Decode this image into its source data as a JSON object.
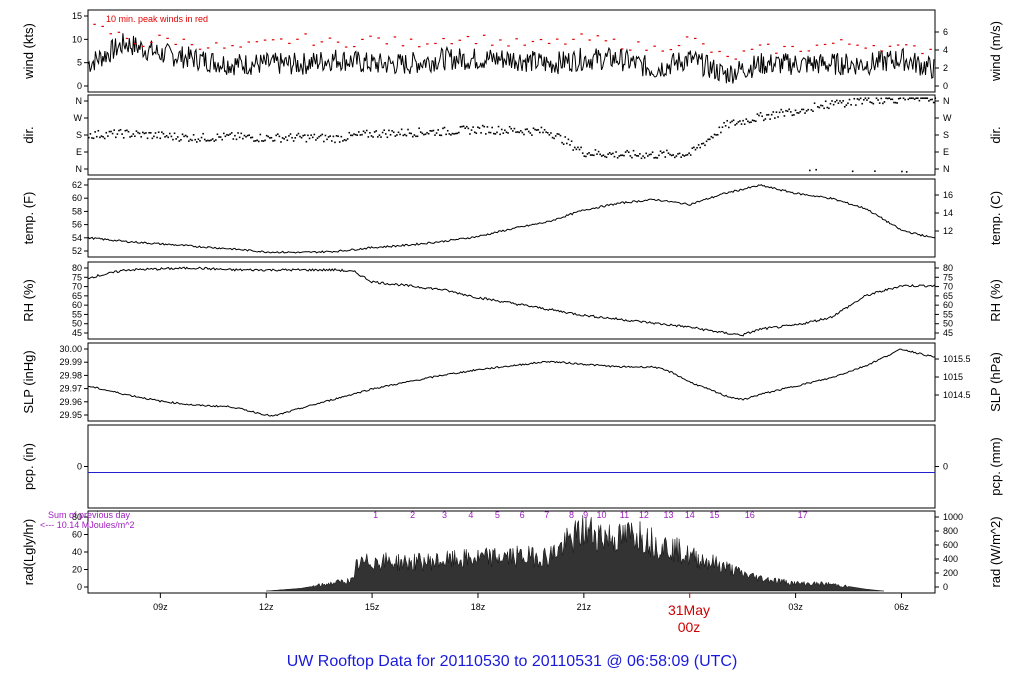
{
  "title": "UW Rooftop Data for 20110530  to  20110531 @ 06:58:09  (UTC)",
  "colors": {
    "title": "#1a1adb",
    "peak": "#e00000",
    "day": "#cc0000",
    "purple": "#a020c0",
    "pcp": "#2222cc",
    "line": "#000000"
  },
  "time_axis": {
    "ticks": [
      "09z",
      "12z",
      "15z",
      "18z",
      "21z",
      "03z",
      "06z"
    ],
    "date_label": "31May",
    "date_sub": "00z"
  },
  "chart_data": [
    {
      "type": "line",
      "ylabel_left": "wind (kts)",
      "ylabel_right": "wind (m/s)",
      "left_ticks": [
        "15",
        "10",
        "5",
        "0"
      ],
      "right_ticks": [
        "6",
        "4",
        "2",
        "0"
      ],
      "annotation": "10 min. peak winds in red",
      "ylim": [
        0,
        15
      ],
      "series": [
        {
          "x": [
            6.95,
            7.5,
            8,
            9,
            10,
            11,
            12,
            13,
            14,
            15,
            16,
            17,
            18,
            19,
            20,
            21,
            22,
            23,
            24,
            25,
            26,
            27,
            28,
            29,
            30,
            30.95
          ],
          "values": [
            5,
            7,
            9,
            7,
            6,
            5,
            5,
            5,
            6,
            5,
            5,
            6,
            6,
            6,
            5,
            6,
            6,
            4,
            6,
            3,
            5,
            5,
            5,
            5,
            6,
            4
          ]
        }
      ],
      "peaks": {
        "x": [
          7.2,
          8.5,
          9,
          10,
          11,
          12,
          13,
          14,
          15,
          16,
          17,
          18,
          19,
          20,
          21,
          22,
          23,
          24,
          25,
          26,
          27,
          28,
          29,
          30
        ],
        "values": [
          12,
          9,
          10,
          9,
          8,
          9,
          10,
          9,
          10,
          9,
          10,
          10,
          9,
          9,
          10,
          9,
          8,
          10,
          6,
          8,
          8,
          9,
          9,
          8
        ]
      }
    },
    {
      "type": "scatter",
      "ylabel_left": "dir.",
      "ylabel_right": "dir.",
      "left_ticks": [
        "N",
        "W",
        "S",
        "E",
        "N"
      ],
      "right_ticks": [
        "N",
        "W",
        "S",
        "E",
        "N"
      ],
      "ylim": [
        0,
        360
      ],
      "series": [
        {
          "x": [
            6.95,
            8,
            9,
            10,
            11,
            12,
            13,
            14,
            15,
            16,
            17,
            18,
            19,
            20,
            21,
            22,
            23,
            24,
            25,
            26,
            27,
            28,
            29,
            30,
            30.95
          ],
          "values": [
            185,
            190,
            180,
            170,
            175,
            170,
            172,
            168,
            190,
            195,
            200,
            210,
            205,
            200,
            100,
            90,
            90,
            95,
            230,
            270,
            300,
            330,
            350,
            355,
            355
          ]
        }
      ]
    },
    {
      "type": "line",
      "ylabel_left": "temp. (F)",
      "ylabel_right": "temp. (C)",
      "left_ticks": [
        "62",
        "60",
        "58",
        "56",
        "54",
        "52"
      ],
      "right_ticks": [
        "16",
        "14",
        "12"
      ],
      "ylim": [
        51,
        63
      ],
      "series": [
        {
          "x": [
            6.95,
            8,
            9,
            10,
            11,
            12,
            13,
            14,
            15,
            16,
            17,
            18,
            19,
            20,
            21,
            22,
            23,
            24,
            25,
            26,
            27,
            28,
            29,
            30,
            30.95
          ],
          "values": [
            53.8,
            53.2,
            52.8,
            52.4,
            52,
            51.5,
            51.4,
            51.6,
            52.2,
            52.6,
            53.2,
            54,
            55.3,
            56.4,
            58.3,
            59.4,
            60,
            59.2,
            61,
            62.3,
            61,
            60.2,
            58.5,
            55,
            53.7
          ]
        }
      ]
    },
    {
      "type": "line",
      "ylabel_left": "RH (%)",
      "ylabel_right": "RH (%)",
      "left_ticks": [
        "80",
        "75",
        "70",
        "65",
        "60",
        "55",
        "50",
        "45"
      ],
      "right_ticks": [
        "80",
        "75",
        "70",
        "65",
        "60",
        "55",
        "50",
        "45"
      ],
      "ylim": [
        44,
        81
      ],
      "series": [
        {
          "x": [
            6.95,
            7.5,
            8,
            9,
            10,
            11,
            12,
            13,
            14,
            14.5,
            15,
            16,
            17,
            18,
            19,
            20,
            21,
            22,
            23,
            24,
            25,
            25.5,
            26,
            27,
            28,
            29,
            30,
            30.95
          ],
          "values": [
            74,
            76,
            78,
            78.5,
            79,
            78,
            78,
            78,
            78,
            77,
            72,
            70,
            68,
            64,
            61,
            58,
            55,
            53,
            51,
            49,
            46,
            45,
            48,
            50,
            54,
            65,
            70,
            70
          ]
        }
      ]
    },
    {
      "type": "line",
      "ylabel_left": "SLP (inHg)",
      "ylabel_right": "SLP (hPa)",
      "left_ticks": [
        "30.00",
        "29.99",
        "29.98",
        "29.97",
        "29.96",
        "29.95"
      ],
      "right_ticks": [
        "1015.5",
        "1015",
        "1014.5"
      ],
      "ylim": [
        29.948,
        30.002
      ],
      "series": [
        {
          "x": [
            6.95,
            8,
            9,
            10,
            11,
            12,
            12.2,
            13,
            14,
            15,
            16,
            17,
            18,
            19,
            20,
            21,
            22,
            23,
            23.5,
            24,
            25,
            25.5,
            26,
            27,
            28,
            29,
            30,
            30.95
          ],
          "values": [
            29.972,
            29.966,
            29.961,
            29.958,
            29.957,
            29.951,
            29.95,
            29.956,
            29.963,
            29.97,
            29.975,
            29.98,
            29.984,
            29.987,
            29.99,
            29.988,
            29.986,
            29.986,
            29.982,
            29.975,
            29.965,
            29.962,
            29.966,
            29.972,
            29.978,
            29.987,
            29.999,
            29.993
          ]
        }
      ]
    },
    {
      "type": "line",
      "ylabel_left": "pcp. (in)",
      "ylabel_right": "pcp. (mm)",
      "left_ticks": [
        "0"
      ],
      "right_ticks": [
        "0"
      ],
      "ylim": [
        -1,
        1
      ],
      "series": [
        {
          "x": [
            6.95,
            30.95
          ],
          "values": [
            0,
            0
          ]
        }
      ]
    },
    {
      "type": "area",
      "ylabel_left": "rad(Lgly/hr)",
      "ylabel_right": "rad (W/m^2)",
      "left_ticks": [
        "80",
        "60",
        "40",
        "20",
        "0"
      ],
      "right_ticks": [
        "1000",
        "800",
        "600",
        "400",
        "200",
        "0"
      ],
      "ylim": [
        0,
        85
      ],
      "left_notes": [
        "Sum of previous day",
        "<--- 10.14 MJoules/m^2"
      ],
      "hour_labels": [
        "1",
        "2",
        "3",
        "4",
        "5",
        "6",
        "7",
        "8",
        "9",
        "10",
        "11",
        "12",
        "13",
        "14",
        "15",
        "16",
        "17"
      ],
      "hour_x": [
        15.1,
        16.15,
        17.05,
        17.8,
        18.55,
        19.25,
        19.95,
        20.65,
        21.05,
        21.5,
        22.15,
        22.7,
        23.4,
        24.0,
        24.7,
        25.7,
        27.2
      ],
      "series": [
        {
          "x": [
            12,
            13,
            14,
            14.5,
            14.55,
            15,
            16,
            17,
            18,
            19,
            20,
            20.5,
            21,
            21.5,
            22,
            22.5,
            23,
            23.5,
            24,
            24.5,
            25,
            25.5,
            26,
            27,
            28,
            29,
            29.5
          ],
          "values": [
            0,
            3,
            10,
            13,
            30,
            35,
            33,
            35,
            38,
            40,
            40,
            55,
            70,
            65,
            60,
            68,
            55,
            50,
            40,
            35,
            28,
            20,
            15,
            9,
            8,
            2,
            0
          ]
        }
      ]
    }
  ]
}
